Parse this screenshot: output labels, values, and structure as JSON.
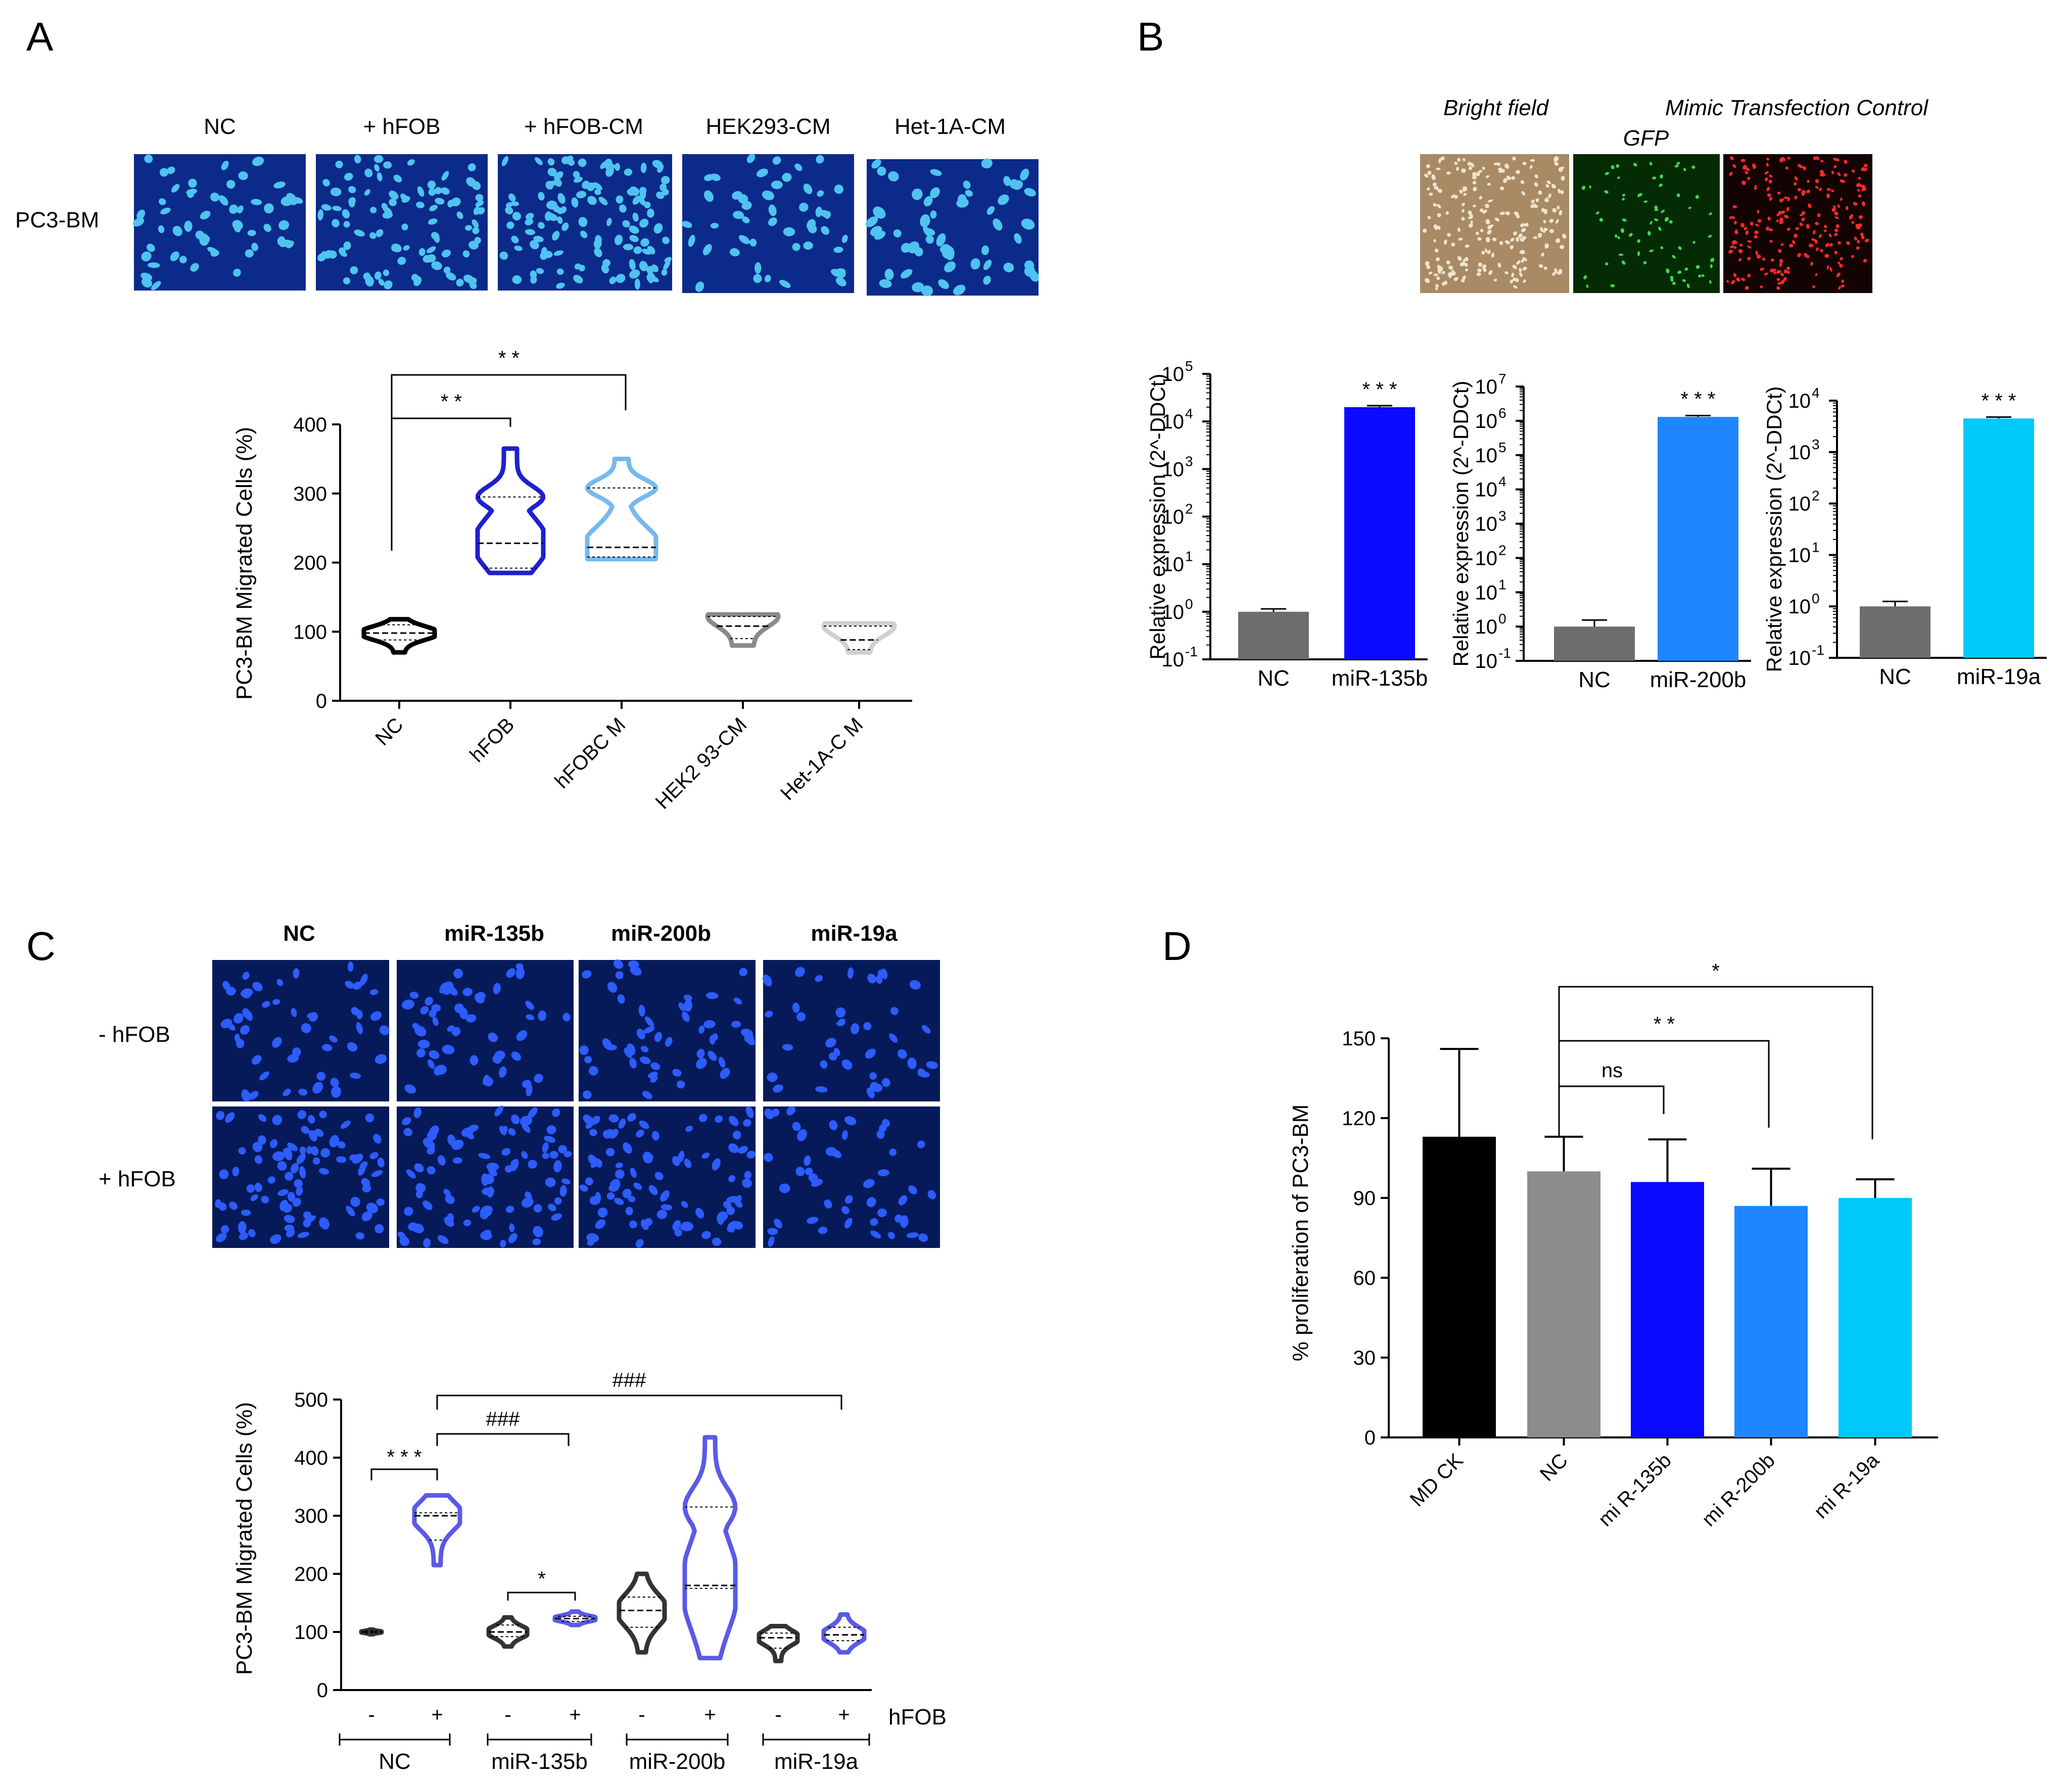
{
  "panels": {
    "A": {
      "letter": "A",
      "image_row_label": "PC3-BM",
      "image_titles": [
        "NC",
        "+ hFOB",
        "+ hFOB-CM",
        "HEK293-CM",
        "Het-1A-CM"
      ],
      "sig": [
        "* *",
        "* *"
      ]
    },
    "B": {
      "letter": "B",
      "image_titles": [
        "Bright field",
        "GFP",
        "Mimic Transfection Control"
      ],
      "sig": [
        "* * *",
        "* * *",
        "* * *"
      ]
    },
    "C": {
      "letter": "C",
      "image_titles": [
        "NC",
        "miR-135b",
        "miR-200b",
        "miR-19a"
      ],
      "row_labels": [
        "- hFOB",
        "+ hFOB"
      ],
      "sig": [
        "* * *",
        "###",
        "###",
        "*"
      ],
      "x_signs": [
        "-",
        "+",
        "-",
        "+",
        "-",
        "+",
        "-",
        "+"
      ],
      "hfob_label": "hFOB",
      "group_labels": [
        "NC",
        "miR-135b",
        "miR-200b",
        "miR-19a"
      ]
    },
    "D": {
      "letter": "D",
      "sig": [
        "ns",
        "* *",
        "*"
      ]
    }
  },
  "chart_data": [
    {
      "id": "A-violin",
      "type": "violin",
      "ylabel": "PC3-BM Migrated Cells (%)",
      "ylim": [
        0,
        400
      ],
      "yticks": [
        0,
        100,
        200,
        300,
        400
      ],
      "categories": [
        "NC",
        "hFOB",
        "hFOBC M",
        "HEK2 93-CM",
        "Het-1A-C M"
      ],
      "colors": [
        "#000000",
        "#1f1fcf",
        "#77b9ee",
        "#8a8a8a",
        "#d0d0d0"
      ],
      "distributions": [
        {
          "min": 70,
          "max": 118,
          "median": 98,
          "q1": 88,
          "q3": 110
        },
        {
          "min": 185,
          "max": 365,
          "median": 228,
          "q1": 192,
          "q3": 295
        },
        {
          "min": 205,
          "max": 350,
          "median": 222,
          "q1": 208,
          "q3": 308
        },
        {
          "min": 80,
          "max": 125,
          "median": 108,
          "q1": 90,
          "q3": 122
        },
        {
          "min": 70,
          "max": 112,
          "median": 88,
          "q1": 74,
          "q3": 108
        }
      ]
    },
    {
      "id": "B-miR-135b",
      "type": "bar",
      "ylabel": "Relative expression (2^-DDCt)",
      "log_scale": true,
      "ylim": [
        0.1,
        100000
      ],
      "ytick_exponents": [
        -1,
        0,
        1,
        2,
        3,
        4,
        5
      ],
      "categories": [
        "NC",
        "miR-135b"
      ],
      "values": [
        1,
        20000
      ],
      "errors": [
        0.15,
        1500
      ],
      "colors": [
        "#6d6d6d",
        "#0a0aff"
      ]
    },
    {
      "id": "B-miR-200b",
      "type": "bar",
      "ylabel": "Relative expression (2^-DDCt)",
      "log_scale": true,
      "ylim": [
        0.1,
        10000000
      ],
      "ytick_exponents": [
        -1,
        0,
        1,
        2,
        3,
        4,
        5,
        6,
        7
      ],
      "categories": [
        "NC",
        "miR-200b"
      ],
      "values": [
        1,
        1300000
      ],
      "errors": [
        0.55,
        120000
      ],
      "colors": [
        "#6d6d6d",
        "#1e87ff"
      ]
    },
    {
      "id": "B-miR-19a",
      "type": "bar",
      "ylabel": "Relative expression (2^-DDCt)",
      "log_scale": true,
      "ylim": [
        0.1,
        10000
      ],
      "ytick_exponents": [
        -1,
        0,
        1,
        2,
        3,
        4
      ],
      "categories": [
        "NC",
        "miR-19a"
      ],
      "values": [
        1,
        4500
      ],
      "errors": [
        0.25,
        300
      ],
      "colors": [
        "#6d6d6d",
        "#00c8f8"
      ]
    },
    {
      "id": "C-violin",
      "type": "violin",
      "ylabel": "PC3-BM Migrated Cells (%)",
      "ylim": [
        0,
        500
      ],
      "yticks": [
        0,
        100,
        200,
        300,
        400,
        500
      ],
      "categories": [
        "NC -",
        "NC +",
        "miR-135b -",
        "miR-135b +",
        "miR-200b -",
        "miR-200b +",
        "miR-19a -",
        "miR-19a +"
      ],
      "colors": [
        "#333333",
        "#5a5ae6",
        "#333333",
        "#5a5ae6",
        "#333333",
        "#5a5ae6",
        "#333333",
        "#5a5ae6"
      ],
      "distributions": [
        {
          "min": 96,
          "max": 104,
          "median": 100,
          "q1": 98,
          "q3": 102
        },
        {
          "min": 215,
          "max": 335,
          "median": 300,
          "q1": 258,
          "q3": 305
        },
        {
          "min": 75,
          "max": 125,
          "median": 100,
          "q1": 92,
          "q3": 112
        },
        {
          "min": 112,
          "max": 135,
          "median": 123,
          "q1": 118,
          "q3": 127
        },
        {
          "min": 65,
          "max": 200,
          "median": 137,
          "q1": 108,
          "q3": 160
        },
        {
          "min": 55,
          "max": 435,
          "median": 180,
          "q1": 175,
          "q3": 315
        },
        {
          "min": 50,
          "max": 110,
          "median": 90,
          "q1": 72,
          "q3": 98
        },
        {
          "min": 65,
          "max": 130,
          "median": 95,
          "q1": 85,
          "q3": 108
        }
      ]
    },
    {
      "id": "D-bar",
      "type": "bar",
      "ylabel": "% proliferation of PC3-BM",
      "ylim": [
        0,
        150
      ],
      "yticks": [
        0,
        30,
        60,
        90,
        120,
        150
      ],
      "categories": [
        "MD CK",
        "NC",
        "mi R-135b",
        "mi R-200b",
        "mi R-19a"
      ],
      "values": [
        113,
        100,
        96,
        87,
        90
      ],
      "errors": [
        33,
        13,
        16,
        14,
        7
      ],
      "colors": [
        "#000000",
        "#8c8c8c",
        "#0a0aff",
        "#1e87ff",
        "#00c8f8"
      ]
    }
  ]
}
